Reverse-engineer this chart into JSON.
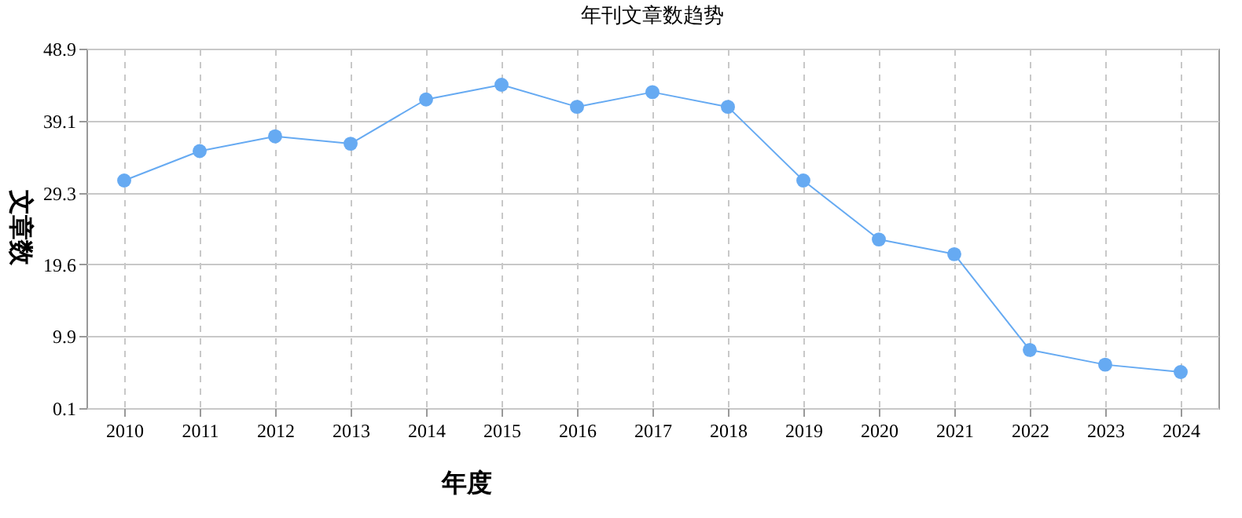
{
  "chart_data": {
    "type": "line",
    "title": "年刊文章数趋势",
    "xlabel": "年度",
    "ylabel": "文章数",
    "categories": [
      "2010",
      "2011",
      "2012",
      "2013",
      "2014",
      "2015",
      "2016",
      "2017",
      "2018",
      "2019",
      "2020",
      "2021",
      "2022",
      "2023",
      "2024"
    ],
    "series": [
      {
        "color": "#66aaf2",
        "values": [
          31,
          35,
          37,
          36,
          42,
          44,
          41,
          43,
          41,
          31,
          23,
          21,
          8,
          6,
          5
        ]
      }
    ],
    "ylim": [
      0.1,
      48.9
    ],
    "yticks": [
      0.1,
      9.9,
      19.6,
      29.3,
      39.1,
      48.9
    ],
    "grid": true,
    "marker": "circle",
    "line_style": "solid"
  }
}
